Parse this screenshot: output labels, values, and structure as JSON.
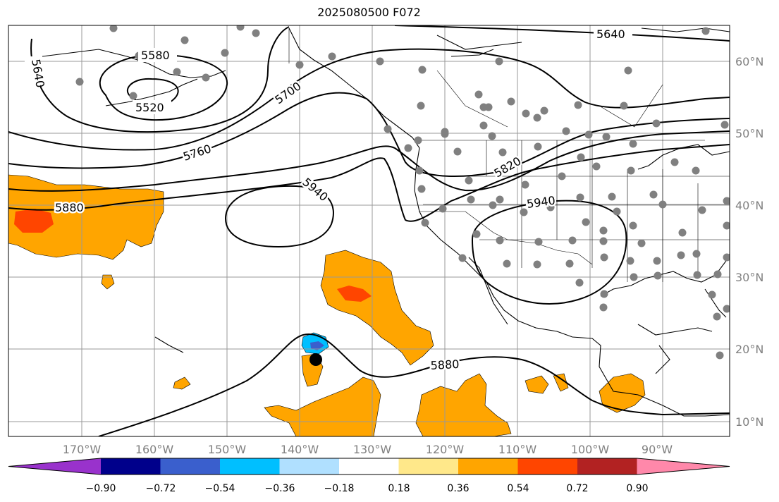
{
  "title": "2025080500 F072",
  "axes": {
    "lon_ticks": [
      "170°W",
      "160°W",
      "150°W",
      "140°W",
      "130°W",
      "120°W",
      "110°W",
      "100°W",
      "90°W"
    ],
    "lat_ticks": [
      "60°N",
      "50°N",
      "40°N",
      "30°N",
      "20°N",
      "10°N"
    ]
  },
  "contour_labels": [
    "5640",
    "5580",
    "5520",
    "5640",
    "5700",
    "5760",
    "5820",
    "5880",
    "5940",
    "5940",
    "5880"
  ],
  "colorbar": {
    "ticks": [
      "−0.90",
      "−0.72",
      "−0.54",
      "−0.36",
      "−0.18",
      "0.18",
      "0.36",
      "0.54",
      "0.72",
      "0.90"
    ],
    "colors": [
      "#9932cc",
      "#00008b",
      "#3a5fcd",
      "#00bfff",
      "#b0e0ff",
      "#ffffff",
      "#ffe88a",
      "#ffa500",
      "#ff4500",
      "#b22222",
      "#ff88aa"
    ]
  },
  "colors": {
    "positive_fill": "#ffa500",
    "strong_positive_fill": "#ff4500",
    "negative_fill": "#00bfff",
    "negative_core": "#3a5fcd",
    "station_dot": "#808080",
    "center_marker": "#000000",
    "grid": "#999999"
  }
}
